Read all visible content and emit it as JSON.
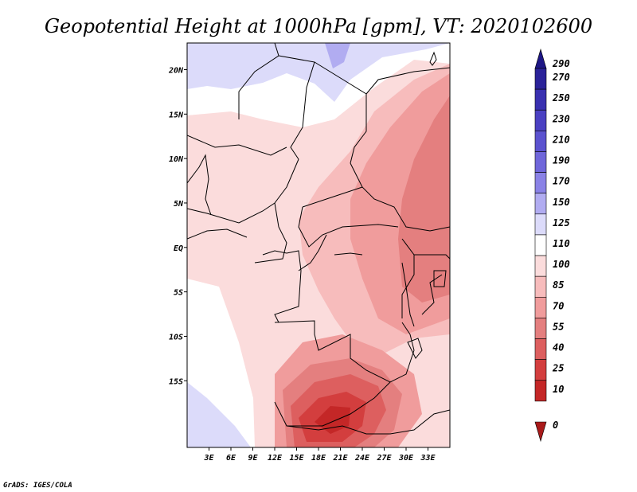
{
  "title": "Geopotential Height at 1000hPa [gpm], VT: 2020102600",
  "credit": "GrADS: IGES/COLA",
  "map": {
    "lon_labels": [
      "3E",
      "6E",
      "9E",
      "12E",
      "15E",
      "18E",
      "21E",
      "24E",
      "27E",
      "30E",
      "33E"
    ],
    "lat_labels": [
      "20N",
      "15N",
      "10N",
      "5N",
      "EQ",
      "5S",
      "10S",
      "15S"
    ]
  },
  "colorbar": {
    "labels": [
      "290",
      "270",
      "250",
      "230",
      "210",
      "190",
      "170",
      "150",
      "125",
      "110",
      "100",
      "85",
      "70",
      "55",
      "40",
      "25",
      "10",
      "0"
    ],
    "colors": [
      "#1d1685",
      "#2a2299",
      "#3930b0",
      "#4a40c2",
      "#5b52cf",
      "#6f66da",
      "#8a82e6",
      "#b1acf1",
      "#dcdbfa",
      "#ffffff",
      "#fbdcdc",
      "#f7bcbc",
      "#f09c9c",
      "#e47f7f",
      "#dd5f5f",
      "#d33e3e",
      "#c42727",
      "#a91a1a"
    ]
  }
}
